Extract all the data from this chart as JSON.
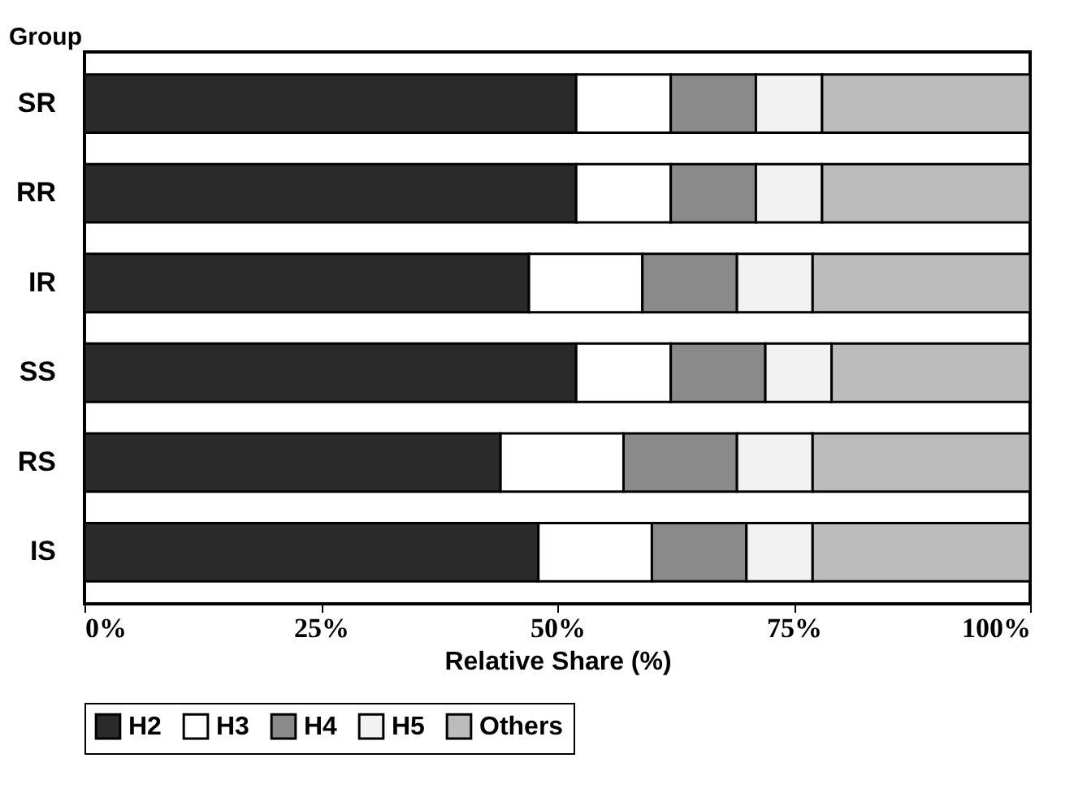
{
  "chart_data": {
    "type": "bar",
    "orientation": "horizontal",
    "stacked": true,
    "ylabel": "Group",
    "xlabel": "Relative Share (%)",
    "categories": [
      "SR",
      "RR",
      "IR",
      "SS",
      "RS",
      "IS"
    ],
    "series": [
      {
        "name": "H2",
        "color": "#2a2a2a",
        "values": [
          52,
          52,
          47,
          52,
          44,
          48
        ]
      },
      {
        "name": "H3",
        "color": "#ffffff",
        "values": [
          10,
          10,
          12,
          10,
          13,
          12
        ]
      },
      {
        "name": "H4",
        "color": "#8a8a8a",
        "values": [
          9,
          9,
          10,
          10,
          12,
          10
        ]
      },
      {
        "name": "H5",
        "color": "#f2f2f2",
        "values": [
          7,
          7,
          8,
          7,
          8,
          7
        ]
      },
      {
        "name": "Others",
        "color": "#bcbcbc",
        "values": [
          22,
          22,
          23,
          21,
          23,
          23
        ]
      }
    ],
    "xlim": [
      0,
      100
    ],
    "xticks": [
      {
        "value": 0,
        "label": "0%"
      },
      {
        "value": 25,
        "label": "25%"
      },
      {
        "value": 50,
        "label": "50%"
      },
      {
        "value": 75,
        "label": "75%"
      },
      {
        "value": 100,
        "label": "100%"
      }
    ],
    "legend": "bottom left",
    "grid": false
  }
}
